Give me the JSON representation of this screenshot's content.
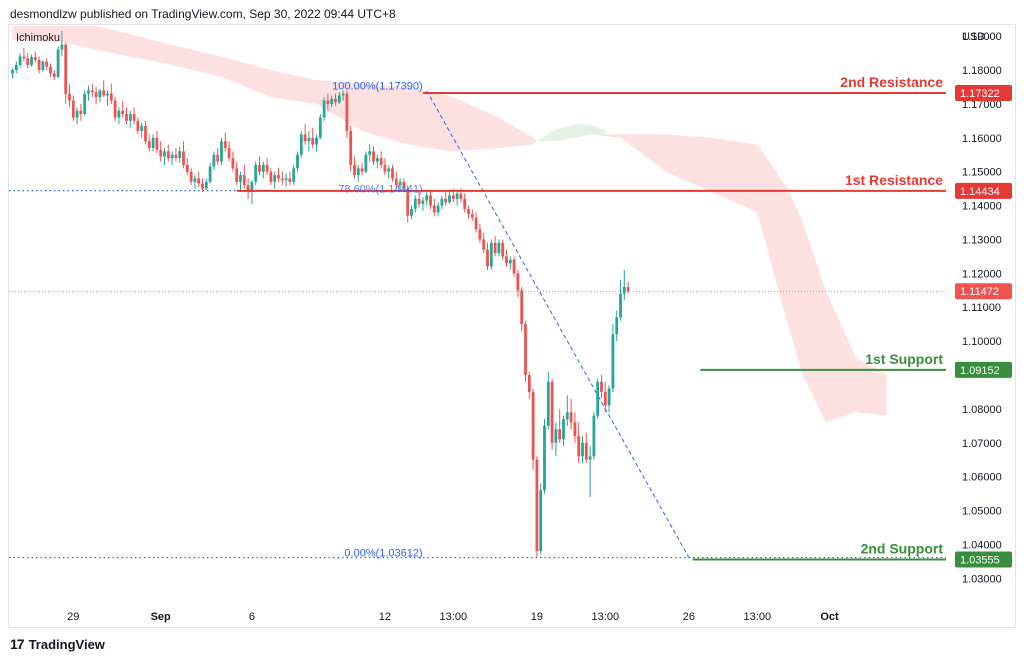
{
  "header": {
    "publisher_line": "desmondlzw published on TradingView.com, Sep 30, 2022 09:44 UTC+8"
  },
  "indicator_label": "Ichimoku",
  "footer": {
    "brand": "TradingView",
    "logo_glyph": "17"
  },
  "colors": {
    "up": "#26a69a",
    "down": "#ef5350",
    "resistance": "#e53935",
    "support": "#388e3c",
    "cloud_bear": "#fde0e0",
    "cloud_bull": "#e3f2e5",
    "fib": "#2962ff"
  },
  "chart_data": {
    "type": "candlestick",
    "currency": "USD",
    "y_range": [
      1.023,
      1.193
    ],
    "y_ticks": [
      "1.19000",
      "1.18000",
      "1.17000",
      "1.16000",
      "1.15000",
      "1.14000",
      "1.13000",
      "1.12000",
      "1.11000",
      "1.10000",
      "1.09000",
      "1.08000",
      "1.07000",
      "1.06000",
      "1.05000",
      "1.04000",
      "1.03000"
    ],
    "x_ticks": [
      {
        "label": "29",
        "bar": 16
      },
      {
        "label": "Sep",
        "bar": 39
      },
      {
        "label": "6",
        "bar": 63
      },
      {
        "label": "12",
        "bar": 98
      },
      {
        "label": "13:00",
        "bar": 116
      },
      {
        "label": "19",
        "bar": 138
      },
      {
        "label": "13:00",
        "bar": 156
      },
      {
        "label": "26",
        "bar": 178
      },
      {
        "label": "13:00",
        "bar": 196
      },
      {
        "label": "Oct",
        "bar": 215
      }
    ],
    "levels": [
      {
        "name": "2nd Resistance",
        "value": 1.17322,
        "label": "1.17322",
        "kind": "resistance",
        "start_bar": 108
      },
      {
        "name": "1st Resistance",
        "value": 1.14434,
        "label": "1.14434",
        "kind": "resistance",
        "start_bar": 59
      },
      {
        "name": "1st Support",
        "value": 1.09152,
        "label": "1.09152",
        "kind": "support",
        "start_bar": 181
      },
      {
        "name": "2nd Support",
        "value": 1.03555,
        "label": "1.03555",
        "kind": "support",
        "start_bar": 179
      }
    ],
    "current_price": {
      "value": 1.11472,
      "label": "1.11472"
    },
    "fib": {
      "high": {
        "value": 1.1739,
        "bar": 109,
        "label": "100.00%(1.17390)"
      },
      "low": {
        "value": 1.03612,
        "bar": 178,
        "label": "0.00%(1.03612)"
      },
      "mid_label": "78.60%(1.14441)",
      "mid_value": 1.14441
    },
    "candles": [
      [
        1.179,
        1.1805,
        1.1775,
        1.18
      ],
      [
        1.18,
        1.1825,
        1.179,
        1.1815
      ],
      [
        1.1815,
        1.185,
        1.1808,
        1.184
      ],
      [
        1.184,
        1.1865,
        1.1825,
        1.1835
      ],
      [
        1.1835,
        1.185,
        1.1805,
        1.1815
      ],
      [
        1.1815,
        1.1845,
        1.181,
        1.1838
      ],
      [
        1.1838,
        1.1855,
        1.1822,
        1.183
      ],
      [
        1.183,
        1.184,
        1.179,
        1.18
      ],
      [
        1.18,
        1.183,
        1.1795,
        1.1825
      ],
      [
        1.1825,
        1.1835,
        1.18,
        1.181
      ],
      [
        1.181,
        1.182,
        1.178,
        1.179
      ],
      [
        1.179,
        1.18,
        1.177,
        1.178
      ],
      [
        1.178,
        1.187,
        1.1775,
        1.186
      ],
      [
        1.186,
        1.1915,
        1.184,
        1.1875
      ],
      [
        1.1875,
        1.188,
        1.17,
        1.173
      ],
      [
        1.173,
        1.176,
        1.169,
        1.171
      ],
      [
        1.171,
        1.1725,
        1.165,
        1.166
      ],
      [
        1.166,
        1.169,
        1.164,
        1.168
      ],
      [
        1.168,
        1.17,
        1.165,
        1.167
      ],
      [
        1.167,
        1.174,
        1.1665,
        1.173
      ],
      [
        1.173,
        1.1755,
        1.171,
        1.174
      ],
      [
        1.174,
        1.176,
        1.172,
        1.1735
      ],
      [
        1.1735,
        1.175,
        1.17,
        1.172
      ],
      [
        1.172,
        1.1745,
        1.1705,
        1.174
      ],
      [
        1.174,
        1.177,
        1.172,
        1.1725
      ],
      [
        1.1725,
        1.174,
        1.1695,
        1.173
      ],
      [
        1.173,
        1.176,
        1.17,
        1.171
      ],
      [
        1.171,
        1.172,
        1.165,
        1.166
      ],
      [
        1.166,
        1.169,
        1.164,
        1.168
      ],
      [
        1.168,
        1.171,
        1.166,
        1.167
      ],
      [
        1.167,
        1.169,
        1.164,
        1.165
      ],
      [
        1.165,
        1.168,
        1.163,
        1.167
      ],
      [
        1.167,
        1.169,
        1.164,
        1.165
      ],
      [
        1.165,
        1.166,
        1.161,
        1.162
      ],
      [
        1.162,
        1.1645,
        1.16,
        1.1635
      ],
      [
        1.1635,
        1.165,
        1.158,
        1.159
      ],
      [
        1.159,
        1.161,
        1.156,
        1.157
      ],
      [
        1.157,
        1.161,
        1.156,
        1.16
      ],
      [
        1.16,
        1.162,
        1.1555,
        1.1565
      ],
      [
        1.1565,
        1.159,
        1.153,
        1.1545
      ],
      [
        1.1545,
        1.157,
        1.152,
        1.156
      ],
      [
        1.156,
        1.158,
        1.153,
        1.154
      ],
      [
        1.154,
        1.156,
        1.152,
        1.155
      ],
      [
        1.155,
        1.157,
        1.153,
        1.154
      ],
      [
        1.154,
        1.1575,
        1.1525,
        1.156
      ],
      [
        1.156,
        1.159,
        1.151,
        1.152
      ],
      [
        1.152,
        1.154,
        1.149,
        1.15
      ],
      [
        1.15,
        1.151,
        1.146,
        1.147
      ],
      [
        1.147,
        1.149,
        1.145,
        1.148
      ],
      [
        1.148,
        1.15,
        1.1455,
        1.1465
      ],
      [
        1.1465,
        1.148,
        1.144,
        1.145
      ],
      [
        1.145,
        1.148,
        1.1445,
        1.147
      ],
      [
        1.147,
        1.1525,
        1.1465,
        1.1515
      ],
      [
        1.1515,
        1.156,
        1.1505,
        1.155
      ],
      [
        1.155,
        1.157,
        1.152,
        1.153
      ],
      [
        1.153,
        1.16,
        1.152,
        1.159
      ],
      [
        1.159,
        1.1615,
        1.156,
        1.157
      ],
      [
        1.157,
        1.159,
        1.153,
        1.154
      ],
      [
        1.154,
        1.156,
        1.15,
        1.151
      ],
      [
        1.151,
        1.153,
        1.146,
        1.147
      ],
      [
        1.147,
        1.15,
        1.144,
        1.149
      ],
      [
        1.149,
        1.152,
        1.145,
        1.146
      ],
      [
        1.146,
        1.148,
        1.142,
        1.144
      ],
      [
        1.144,
        1.1475,
        1.1405,
        1.147
      ],
      [
        1.147,
        1.153,
        1.146,
        1.152
      ],
      [
        1.152,
        1.1545,
        1.149,
        1.15
      ],
      [
        1.15,
        1.153,
        1.148,
        1.152
      ],
      [
        1.152,
        1.154,
        1.149,
        1.15
      ],
      [
        1.15,
        1.151,
        1.146,
        1.147
      ],
      [
        1.147,
        1.15,
        1.145,
        1.149
      ],
      [
        1.149,
        1.151,
        1.147,
        1.148
      ],
      [
        1.148,
        1.15,
        1.146,
        1.1475
      ],
      [
        1.1475,
        1.1495,
        1.1455,
        1.148
      ],
      [
        1.148,
        1.15,
        1.146,
        1.147
      ],
      [
        1.147,
        1.152,
        1.146,
        1.151
      ],
      [
        1.151,
        1.156,
        1.15,
        1.155
      ],
      [
        1.155,
        1.162,
        1.154,
        1.161
      ],
      [
        1.161,
        1.164,
        1.158,
        1.159
      ],
      [
        1.159,
        1.162,
        1.156,
        1.16
      ],
      [
        1.16,
        1.163,
        1.157,
        1.158
      ],
      [
        1.158,
        1.161,
        1.156,
        1.16
      ],
      [
        1.16,
        1.167,
        1.1595,
        1.166
      ],
      [
        1.166,
        1.172,
        1.165,
        1.171
      ],
      [
        1.171,
        1.173,
        1.168,
        1.17
      ],
      [
        1.17,
        1.1725,
        1.169,
        1.1715
      ],
      [
        1.1715,
        1.173,
        1.1695,
        1.1705
      ],
      [
        1.1705,
        1.1735,
        1.17,
        1.1725
      ],
      [
        1.1725,
        1.1739,
        1.171,
        1.173
      ],
      [
        1.173,
        1.1739,
        1.16,
        1.162
      ],
      [
        1.162,
        1.1635,
        1.15,
        1.152
      ],
      [
        1.152,
        1.1545,
        1.148,
        1.149
      ],
      [
        1.149,
        1.152,
        1.147,
        1.151
      ],
      [
        1.151,
        1.1525,
        1.149,
        1.15
      ],
      [
        1.15,
        1.156,
        1.1495,
        1.155
      ],
      [
        1.155,
        1.158,
        1.153,
        1.156
      ],
      [
        1.156,
        1.1575,
        1.152,
        1.153
      ],
      [
        1.153,
        1.155,
        1.151,
        1.154
      ],
      [
        1.154,
        1.156,
        1.151,
        1.152
      ],
      [
        1.152,
        1.154,
        1.149,
        1.15
      ],
      [
        1.15,
        1.152,
        1.148,
        1.151
      ],
      [
        1.151,
        1.152,
        1.147,
        1.148
      ],
      [
        1.148,
        1.15,
        1.145,
        1.146
      ],
      [
        1.146,
        1.148,
        1.144,
        1.147
      ],
      [
        1.147,
        1.148,
        1.144,
        1.145
      ],
      [
        1.145,
        1.146,
        1.135,
        1.137
      ],
      [
        1.137,
        1.14,
        1.136,
        1.139
      ],
      [
        1.139,
        1.143,
        1.138,
        1.142
      ],
      [
        1.142,
        1.144,
        1.1395,
        1.1405
      ],
      [
        1.1405,
        1.1425,
        1.1385,
        1.1415
      ],
      [
        1.1415,
        1.144,
        1.14,
        1.143
      ],
      [
        1.143,
        1.1445,
        1.139,
        1.14
      ],
      [
        1.14,
        1.142,
        1.137,
        1.138
      ],
      [
        1.138,
        1.141,
        1.137,
        1.14
      ],
      [
        1.14,
        1.143,
        1.139,
        1.142
      ],
      [
        1.142,
        1.144,
        1.14,
        1.141
      ],
      [
        1.141,
        1.144,
        1.1405,
        1.143
      ],
      [
        1.143,
        1.145,
        1.141,
        1.142
      ],
      [
        1.142,
        1.1445,
        1.14,
        1.1435
      ],
      [
        1.1435,
        1.145,
        1.141,
        1.142
      ],
      [
        1.142,
        1.1435,
        1.138,
        1.139
      ],
      [
        1.139,
        1.14,
        1.136,
        1.1375
      ],
      [
        1.1375,
        1.139,
        1.1355,
        1.1365
      ],
      [
        1.1365,
        1.138,
        1.132,
        1.133
      ],
      [
        1.133,
        1.1345,
        1.129,
        1.13
      ],
      [
        1.13,
        1.132,
        1.126,
        1.127
      ],
      [
        1.127,
        1.129,
        1.121,
        1.122
      ],
      [
        1.122,
        1.13,
        1.121,
        1.129
      ],
      [
        1.129,
        1.131,
        1.125,
        1.126
      ],
      [
        1.126,
        1.13,
        1.125,
        1.129
      ],
      [
        1.129,
        1.13,
        1.124,
        1.125
      ],
      [
        1.125,
        1.127,
        1.122,
        1.123
      ],
      [
        1.123,
        1.125,
        1.121,
        1.124
      ],
      [
        1.124,
        1.125,
        1.119,
        1.12
      ],
      [
        1.12,
        1.121,
        1.113,
        1.115
      ],
      [
        1.115,
        1.116,
        1.103,
        1.105
      ],
      [
        1.105,
        1.106,
        1.088,
        1.09
      ],
      [
        1.09,
        1.091,
        1.083,
        1.085
      ],
      [
        1.085,
        1.086,
        1.062,
        1.065
      ],
      [
        1.065,
        1.066,
        1.0361,
        1.038
      ],
      [
        1.038,
        1.058,
        1.037,
        1.056
      ],
      [
        1.056,
        1.077,
        1.055,
        1.075
      ],
      [
        1.075,
        1.091,
        1.074,
        1.088
      ],
      [
        1.088,
        1.089,
        1.068,
        1.07
      ],
      [
        1.07,
        1.076,
        1.066,
        1.074
      ],
      [
        1.074,
        1.08,
        1.07,
        1.071
      ],
      [
        1.071,
        1.078,
        1.069,
        1.077
      ],
      [
        1.077,
        1.084,
        1.075,
        1.079
      ],
      [
        1.079,
        1.083,
        1.074,
        1.076
      ],
      [
        1.076,
        1.079,
        1.07,
        1.072
      ],
      [
        1.072,
        1.076,
        1.064,
        1.066
      ],
      [
        1.066,
        1.072,
        1.064,
        1.07
      ],
      [
        1.07,
        1.073,
        1.064,
        1.065
      ],
      [
        1.065,
        1.069,
        1.054,
        1.066
      ],
      [
        1.066,
        1.079,
        1.065,
        1.078
      ],
      [
        1.078,
        1.089,
        1.077,
        1.088
      ],
      [
        1.088,
        1.09,
        1.083,
        1.085
      ],
      [
        1.085,
        1.088,
        1.079,
        1.081
      ],
      [
        1.081,
        1.087,
        1.079,
        1.086
      ],
      [
        1.086,
        1.105,
        1.085,
        1.102
      ],
      [
        1.102,
        1.109,
        1.1,
        1.107
      ],
      [
        1.107,
        1.118,
        1.106,
        1.114
      ],
      [
        1.114,
        1.121,
        1.112,
        1.116
      ],
      [
        1.116,
        1.1175,
        1.114,
        1.1147
      ]
    ],
    "cloud": [
      {
        "x": 0,
        "top": 1.195,
        "bottom": 1.189
      },
      {
        "x": 14,
        "top": 1.195,
        "bottom": 1.188
      },
      {
        "x": 26,
        "top": 1.192,
        "bottom": 1.185
      },
      {
        "x": 40,
        "top": 1.188,
        "bottom": 1.182
      },
      {
        "x": 55,
        "top": 1.184,
        "bottom": 1.178
      },
      {
        "x": 68,
        "top": 1.18,
        "bottom": 1.172
      },
      {
        "x": 80,
        "top": 1.177,
        "bottom": 1.17
      },
      {
        "x": 92,
        "top": 1.176,
        "bottom": 1.162
      },
      {
        "x": 104,
        "top": 1.175,
        "bottom": 1.158
      },
      {
        "x": 116,
        "top": 1.172,
        "bottom": 1.156
      },
      {
        "x": 128,
        "top": 1.166,
        "bottom": 1.157
      },
      {
        "x": 137,
        "top": 1.16,
        "bottom": 1.158
      },
      {
        "x": 138,
        "top": 1.159,
        "bottom": 1.159
      },
      {
        "x": 152,
        "top": 1.161,
        "bottom": 1.161
      },
      {
        "x": 160,
        "top": 1.161,
        "bottom": 1.16
      },
      {
        "x": 172,
        "top": 1.161,
        "bottom": 1.15
      },
      {
        "x": 184,
        "top": 1.16,
        "bottom": 1.144
      },
      {
        "x": 196,
        "top": 1.158,
        "bottom": 1.138
      },
      {
        "x": 204,
        "top": 1.145,
        "bottom": 1.105
      },
      {
        "x": 208,
        "top": 1.135,
        "bottom": 1.09
      },
      {
        "x": 214,
        "top": 1.115,
        "bottom": 1.076
      },
      {
        "x": 222,
        "top": 1.095,
        "bottom": 1.079
      },
      {
        "x": 230,
        "top": 1.09,
        "bottom": 1.078
      }
    ],
    "cloud_bull": [
      {
        "x": 138,
        "top": 1.159,
        "bottom": 1.159
      },
      {
        "x": 143,
        "top": 1.1625,
        "bottom": 1.159
      },
      {
        "x": 148,
        "top": 1.164,
        "bottom": 1.16
      },
      {
        "x": 152,
        "top": 1.164,
        "bottom": 1.161
      },
      {
        "x": 156,
        "top": 1.162,
        "bottom": 1.161
      }
    ]
  }
}
